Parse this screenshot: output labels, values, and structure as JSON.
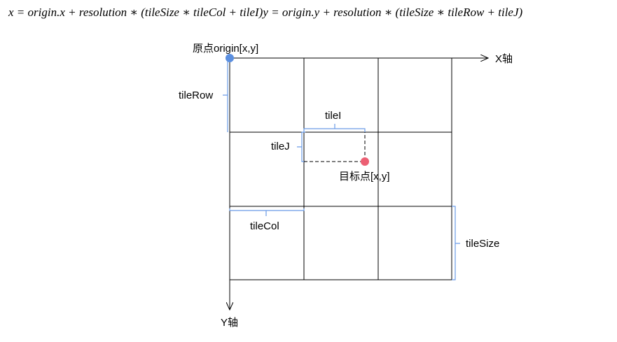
{
  "formula": "x = origin.x + resolution ∗ (tileSize ∗ tileCol + tileI)y = origin.y + resolution ∗ (tileSize ∗ tileRow + tileJ)",
  "axes": {
    "x": "X轴",
    "y": "Y轴"
  },
  "labels": {
    "origin": "原点origin[x,y]",
    "tile_row": "tileRow",
    "tile_i": "tileI",
    "tile_j": "tileJ",
    "target": "目标点[x,y]",
    "tile_col": "tileCol",
    "tile_size": "tileSize"
  }
}
